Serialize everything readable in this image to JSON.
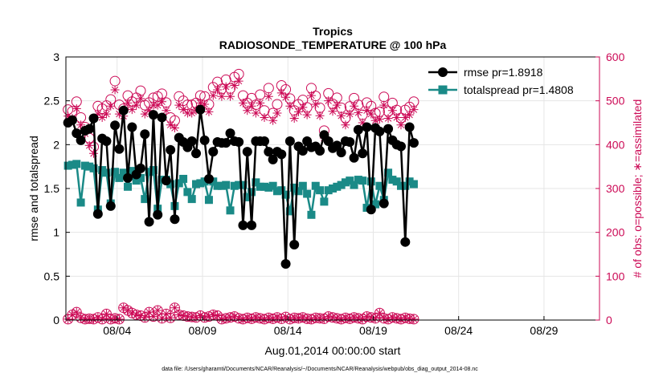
{
  "chart_data": {
    "type": "line",
    "title": "Tropics",
    "subtitle": "RADIOSONDE_TEMPERATURE @ 100 hPa",
    "xlabel": "Aug.01,2014 00:00:00 start",
    "ylabel_left": "rmse and totalspread",
    "ylabel_right": "# of obs: o=possible; ∗=assimilated",
    "footer": "data file: /Users/gharamti/Documents/NCAR/Reanalysis/~/Documents/NCAR/Reanalysis/webpub/obs_diag_output_2014-08.nc",
    "xlim": [
      0,
      31.25
    ],
    "ylim_left": [
      0,
      3
    ],
    "ylim_right": [
      0,
      600
    ],
    "x_ticks": [
      {
        "value": 3,
        "label": "08/04"
      },
      {
        "value": 8,
        "label": "08/09"
      },
      {
        "value": 13,
        "label": "08/14"
      },
      {
        "value": 18,
        "label": "08/19"
      },
      {
        "value": 23,
        "label": "08/24"
      },
      {
        "value": 28,
        "label": "08/29"
      }
    ],
    "y_ticks_left": [
      "0",
      "0.5",
      "1",
      "1.5",
      "2",
      "2.5",
      "3"
    ],
    "y_ticks_right": [
      "0",
      "100",
      "200",
      "300",
      "400",
      "500",
      "600"
    ],
    "x_step": 0.25,
    "legend": [
      {
        "label": "rmse pr=1.8918",
        "series": "rmse"
      },
      {
        "label": "totalspread pr=1.4808",
        "series": "spread"
      }
    ],
    "series": [
      {
        "name": "rmse",
        "color": "#000000",
        "values": [
          2.25,
          2.28,
          2.13,
          2.05,
          2.16,
          2.18,
          2.3,
          1.21,
          2.07,
          2.04,
          1.3,
          2.22,
          1.95,
          2.39,
          1.62,
          2.2,
          1.66,
          1.73,
          2.12,
          1.12,
          2.34,
          1.2,
          2.31,
          1.59,
          1.94,
          1.15,
          2.08,
          2.03,
          1.97,
          2.04,
          1.9,
          2.4,
          2.05,
          1.61,
          1.92,
          2.03,
          2.02,
          2.02,
          2.13,
          2.04,
          2.03,
          1.08,
          1.92,
          1.08,
          2.04,
          2.04,
          2.04,
          1.92,
          1.83,
          1.92,
          1.89,
          0.64,
          2.04,
          0.86,
          1.98,
          1.93,
          2.04,
          1.97,
          1.98,
          1.93,
          2.11,
          2.04,
          1.96,
          1.99,
          1.91,
          2.04,
          2.03,
          1.85,
          2.17,
          1.9,
          2.2,
          1.26,
          2.19,
          2.15,
          1.33,
          2.18,
          2.05,
          2.0,
          1.98,
          0.89,
          2.2,
          2.02
        ]
      },
      {
        "name": "totalspread",
        "color": "#1a8a87",
        "values": [
          1.76,
          1.77,
          1.78,
          1.34,
          1.76,
          1.75,
          1.73,
          1.26,
          1.71,
          1.68,
          1.33,
          1.69,
          1.62,
          1.68,
          1.52,
          1.7,
          1.59,
          1.62,
          1.38,
          1.69,
          1.71,
          1.27,
          1.6,
          1.6,
          1.55,
          1.3,
          1.56,
          1.61,
          1.46,
          1.38,
          1.55,
          1.56,
          1.58,
          1.37,
          1.58,
          1.53,
          1.53,
          1.54,
          1.25,
          1.53,
          1.54,
          1.54,
          1.4,
          1.46,
          1.57,
          1.52,
          1.52,
          1.51,
          1.53,
          1.47,
          1.48,
          1.43,
          1.24,
          1.51,
          1.47,
          1.53,
          1.44,
          1.2,
          1.53,
          1.48,
          1.35,
          1.48,
          1.5,
          1.52,
          1.54,
          1.57,
          1.59,
          1.54,
          1.6,
          1.59,
          1.28,
          1.58,
          1.32,
          1.53,
          1.37,
          1.68,
          1.6,
          1.58,
          1.53,
          1.53,
          1.58,
          1.55
        ]
      },
      {
        "name": "obs possible",
        "color": "#cc0a56",
        "values": [
          480,
          476,
          498,
          462,
          440,
          415,
          395,
          488,
          482,
          489,
          503,
          545,
          491,
          482,
          512,
          498,
          507,
          523,
          490,
          496,
          507,
          510,
          516,
          496,
          462,
          455,
          510,
          500,
          491,
          491,
          495,
          512,
          510,
          492,
          531,
          543,
          527,
          548,
          528,
          554,
          561,
          512,
          495,
          506,
          491,
          514,
          478,
          529,
          472,
          492,
          535,
          526,
          505,
          478,
          492,
          502,
          485,
          529,
          511,
          484,
          432,
          517,
          493,
          507,
          484,
          461,
          487,
          506,
          491,
          468,
          496,
          488,
          472,
          475,
          509,
          476,
          495,
          479,
          461,
          479,
          486,
          498
        ]
      },
      {
        "name": "obs assimilated",
        "color": "#cc0a56",
        "values": [
          465,
          460,
          482,
          445,
          425,
          398,
          380,
          470,
          462,
          470,
          488,
          525,
          470,
          465,
          495,
          480,
          490,
          505,
          470,
          478,
          490,
          490,
          498,
          478,
          445,
          438,
          490,
          480,
          472,
          472,
          478,
          495,
          492,
          475,
          512,
          525,
          510,
          532,
          510,
          535,
          545,
          495,
          478,
          488,
          472,
          495,
          462,
          510,
          455,
          472,
          518,
          508,
          488,
          460,
          475,
          485,
          468,
          512,
          492,
          466,
          415,
          500,
          476,
          490,
          466,
          445,
          470,
          488,
          473,
          450,
          478,
          470,
          455,
          458,
          490,
          460,
          478,
          462,
          445,
          462,
          468,
          480
        ]
      },
      {
        "name": "obs possible low",
        "color": "#cc0a56",
        "values": [
          2,
          12,
          18,
          5,
          2,
          3,
          2,
          6,
          2,
          14,
          2,
          4,
          2,
          28,
          22,
          16,
          12,
          10,
          6,
          18,
          8,
          22,
          4,
          14,
          5,
          28,
          12,
          10,
          8,
          7,
          6,
          10,
          6,
          8,
          12,
          10,
          2,
          4,
          6,
          8,
          4,
          2,
          5,
          3,
          6,
          4,
          2,
          5,
          3,
          6,
          3,
          7,
          2,
          5,
          4,
          6,
          3,
          2,
          5,
          4,
          3,
          8,
          6,
          4,
          2,
          5,
          3,
          6,
          4,
          2,
          8,
          6,
          4,
          16,
          4,
          2,
          6,
          4,
          2,
          5,
          3,
          2
        ]
      },
      {
        "name": "obs assimilated low",
        "color": "#cc0a56",
        "values": [
          2,
          12,
          18,
          5,
          2,
          3,
          2,
          6,
          2,
          14,
          2,
          4,
          2,
          28,
          22,
          16,
          12,
          10,
          6,
          18,
          8,
          22,
          4,
          14,
          5,
          28,
          12,
          10,
          8,
          7,
          6,
          10,
          6,
          8,
          12,
          10,
          2,
          4,
          6,
          8,
          4,
          2,
          5,
          3,
          6,
          4,
          2,
          5,
          3,
          6,
          3,
          7,
          2,
          5,
          4,
          6,
          3,
          2,
          5,
          4,
          3,
          8,
          6,
          4,
          2,
          5,
          3,
          6,
          4,
          2,
          8,
          6,
          4,
          16,
          4,
          2,
          6,
          4,
          2,
          5,
          3,
          2
        ]
      }
    ]
  }
}
